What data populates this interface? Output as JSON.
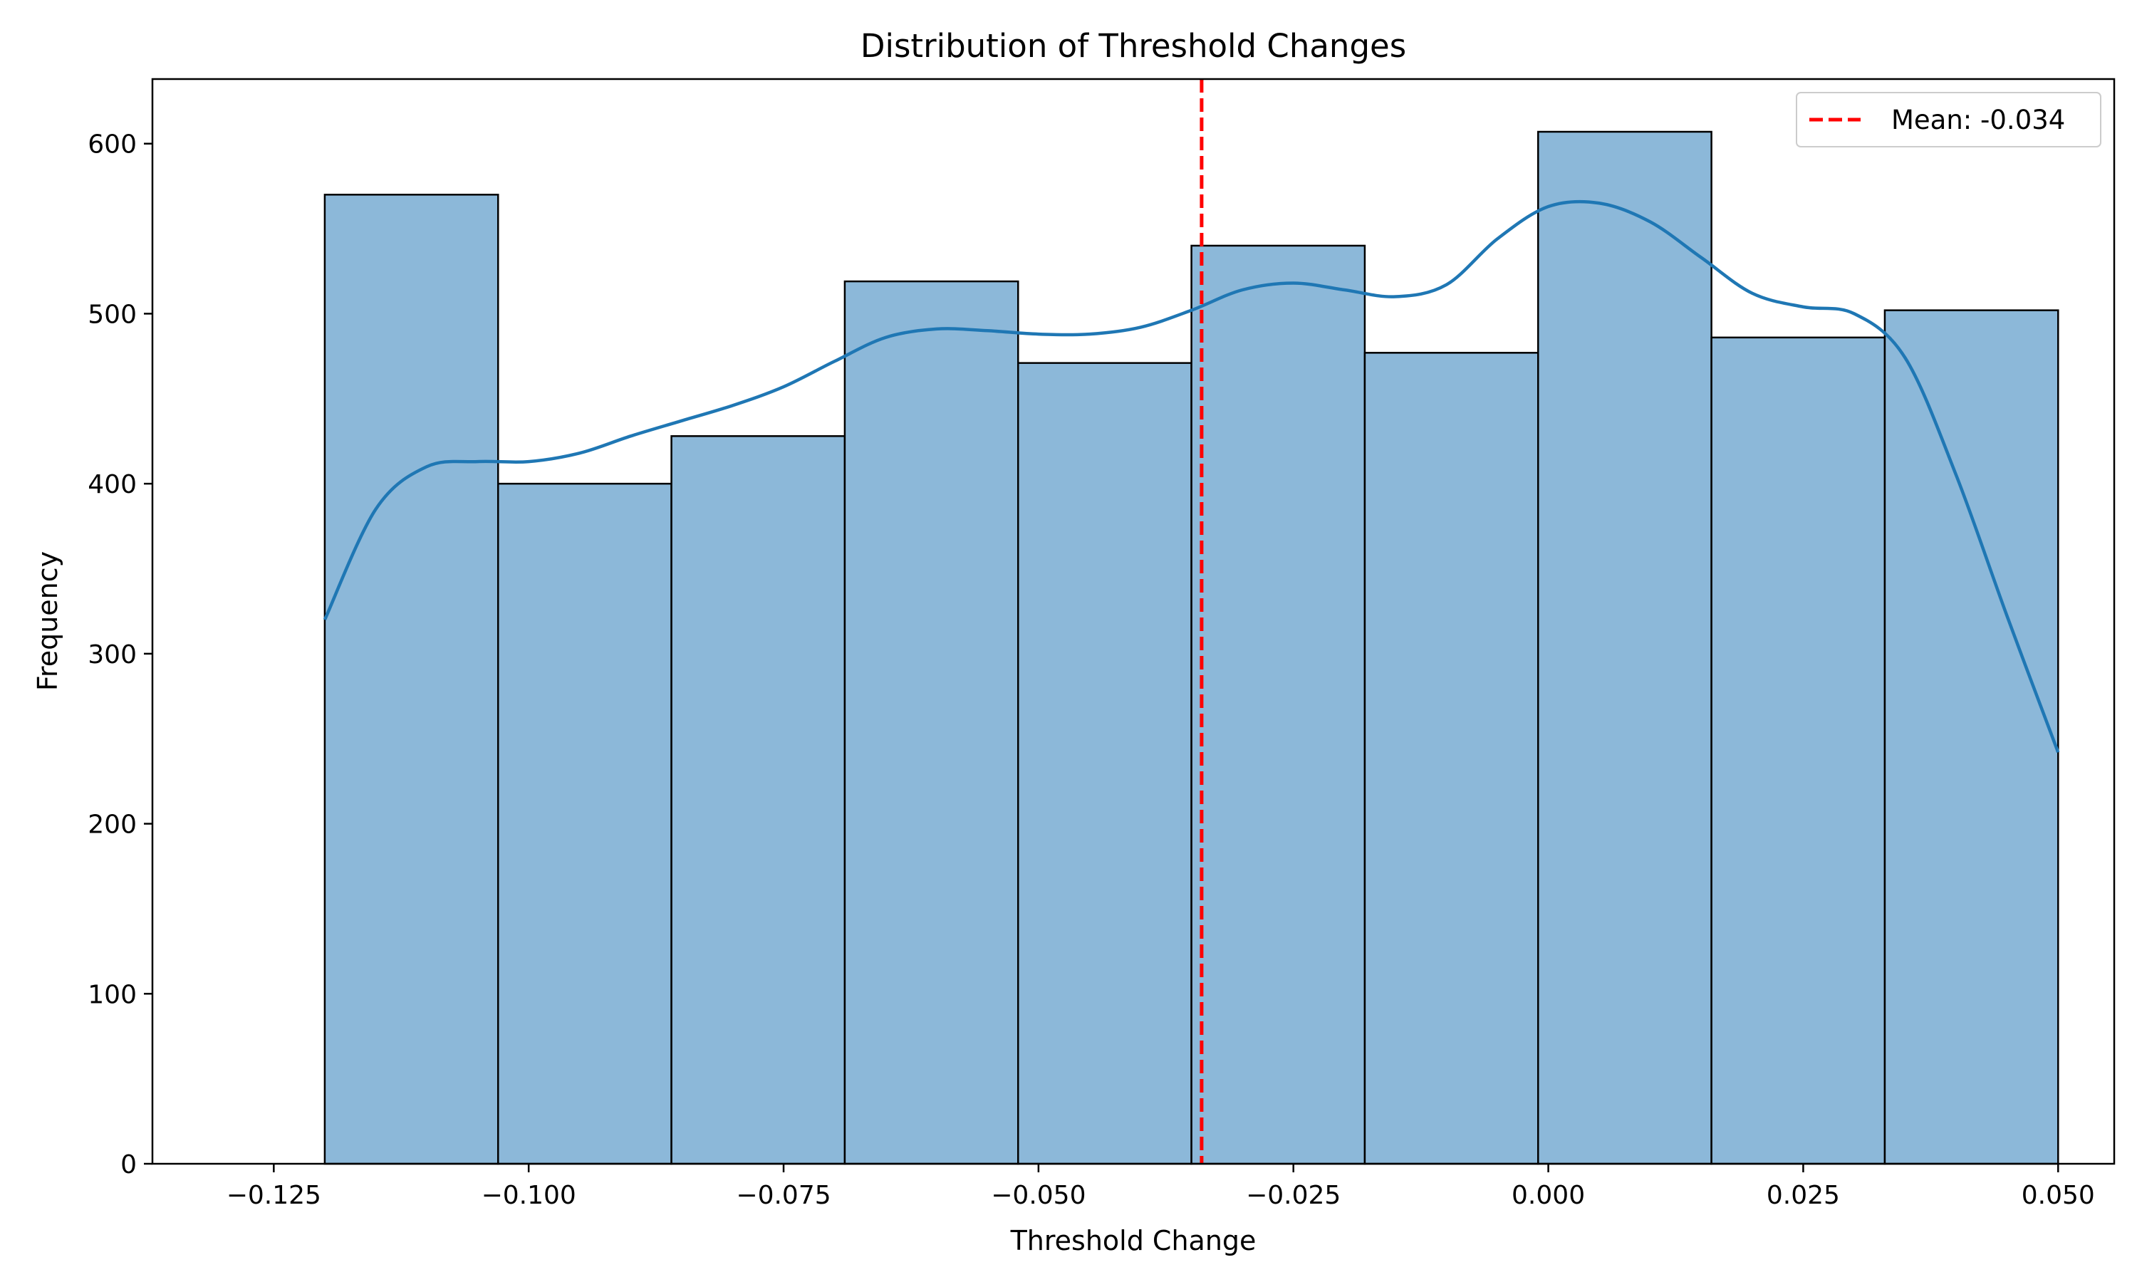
{
  "chart_data": {
    "type": "bar",
    "title": "Distribution of Threshold Changes",
    "xlabel": "Threshold Change",
    "ylabel": "Frequency",
    "xlim": [
      -0.1369,
      0.0555
    ],
    "ylim": [
      0,
      638
    ],
    "x_ticks": [
      {
        "value": -0.125,
        "label": "−0.125"
      },
      {
        "value": -0.1,
        "label": "−0.100"
      },
      {
        "value": -0.075,
        "label": "−0.075"
      },
      {
        "value": -0.05,
        "label": "−0.050"
      },
      {
        "value": -0.025,
        "label": "−0.025"
      },
      {
        "value": 0.0,
        "label": "0.000"
      },
      {
        "value": 0.025,
        "label": "0.025"
      },
      {
        "value": 0.05,
        "label": "0.050"
      }
    ],
    "y_ticks": [
      {
        "value": 0,
        "label": "0"
      },
      {
        "value": 100,
        "label": "100"
      },
      {
        "value": 200,
        "label": "200"
      },
      {
        "value": 300,
        "label": "300"
      },
      {
        "value": 400,
        "label": "400"
      },
      {
        "value": 500,
        "label": "500"
      },
      {
        "value": 600,
        "label": "600"
      }
    ],
    "bins": [
      {
        "x0": -0.12,
        "x1": -0.103,
        "count": 570
      },
      {
        "x0": -0.103,
        "x1": -0.086,
        "count": 400
      },
      {
        "x0": -0.086,
        "x1": -0.069,
        "count": 428
      },
      {
        "x0": -0.069,
        "x1": -0.052,
        "count": 519
      },
      {
        "x0": -0.052,
        "x1": -0.035,
        "count": 471
      },
      {
        "x0": -0.035,
        "x1": -0.018,
        "count": 540
      },
      {
        "x0": -0.018,
        "x1": -0.001,
        "count": 477
      },
      {
        "x0": -0.001,
        "x1": 0.016,
        "count": 607
      },
      {
        "x0": 0.016,
        "x1": 0.033,
        "count": 486
      },
      {
        "x0": 0.033,
        "x1": 0.05,
        "count": 502
      }
    ],
    "kde": {
      "x": [
        -0.12,
        -0.115,
        -0.11,
        -0.105,
        -0.1,
        -0.095,
        -0.09,
        -0.085,
        -0.08,
        -0.075,
        -0.07,
        -0.065,
        -0.06,
        -0.055,
        -0.05,
        -0.045,
        -0.04,
        -0.035,
        -0.03,
        -0.025,
        -0.02,
        -0.015,
        -0.01,
        -0.005,
        0.0,
        0.005,
        0.01,
        0.015,
        0.02,
        0.025,
        0.03,
        0.035,
        0.04,
        0.045,
        0.05
      ],
      "y": [
        320,
        385,
        410,
        413,
        413,
        418,
        428,
        437,
        446,
        457,
        472,
        486,
        491,
        490,
        488,
        488,
        492,
        502,
        514,
        518,
        514,
        510,
        517,
        544,
        563,
        565,
        554,
        533,
        512,
        504,
        500,
        474,
        405,
        322,
        242
      ]
    },
    "mean_line": {
      "x": -0.034,
      "legend": "Mean: -0.034"
    },
    "legend_position": "top-right",
    "grid": false,
    "colors": {
      "bar_fill": "#8cb8d9",
      "bar_edge": "#000000",
      "kde_line": "#1f77b4",
      "mean_line": "#ff0000"
    }
  }
}
